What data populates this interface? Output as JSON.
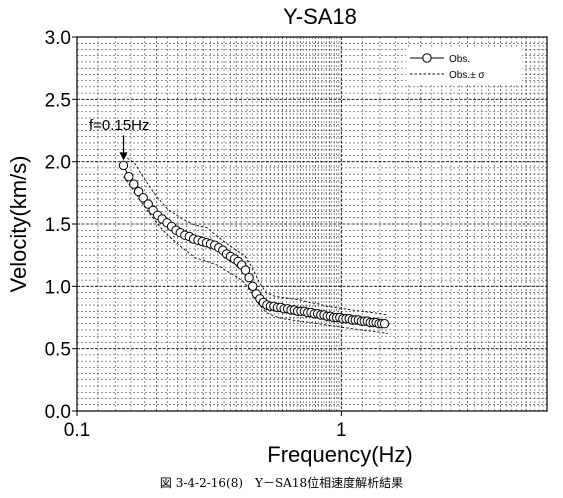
{
  "chart_data": {
    "type": "scatter",
    "title": "Y-SA18",
    "xlabel": "Frequency(Hz)",
    "ylabel": "Velocity(km/s)",
    "xscale": "log",
    "xlim": [
      0.1,
      6.0
    ],
    "ylim": [
      0.0,
      3.0
    ],
    "grid": true,
    "legend_position": "top-right",
    "x_ticks": [
      {
        "value": 0.1,
        "label": "0.1"
      },
      {
        "value": 1,
        "label": "1"
      }
    ],
    "y_ticks": [
      {
        "value": 0.0,
        "label": "0.0"
      },
      {
        "value": 0.5,
        "label": "0.5"
      },
      {
        "value": 1.0,
        "label": "1.0"
      },
      {
        "value": 1.5,
        "label": "1.5"
      },
      {
        "value": 2.0,
        "label": "2.0"
      },
      {
        "value": 2.5,
        "label": "2.5"
      },
      {
        "value": 3.0,
        "label": "3.0"
      }
    ],
    "annotation": {
      "text": "f=0.15Hz",
      "x": 0.15,
      "y": 1.97
    },
    "series": [
      {
        "name": "Obs.",
        "marker": "circle",
        "line": "solid",
        "x": [
          0.15,
          0.157,
          0.164,
          0.171,
          0.178,
          0.186,
          0.194,
          0.202,
          0.21,
          0.219,
          0.228,
          0.237,
          0.246,
          0.256,
          0.266,
          0.276,
          0.287,
          0.298,
          0.309,
          0.32,
          0.332,
          0.344,
          0.356,
          0.368,
          0.381,
          0.394,
          0.407,
          0.42,
          0.434,
          0.448,
          0.462,
          0.477,
          0.492,
          0.507,
          0.523,
          0.539,
          0.556,
          0.573,
          0.59,
          0.608,
          0.626,
          0.645,
          0.664,
          0.684,
          0.704,
          0.725,
          0.746,
          0.768,
          0.79,
          0.813,
          0.836,
          0.86,
          0.884,
          0.909,
          0.934,
          0.96,
          0.987,
          1.014,
          1.042,
          1.071,
          1.1,
          1.13,
          1.16,
          1.191,
          1.222,
          1.254,
          1.287,
          1.32,
          1.354,
          1.388,
          1.423,
          1.458
        ],
        "y": [
          1.97,
          1.88,
          1.82,
          1.76,
          1.71,
          1.66,
          1.61,
          1.57,
          1.54,
          1.51,
          1.48,
          1.45,
          1.43,
          1.41,
          1.4,
          1.38,
          1.37,
          1.36,
          1.35,
          1.34,
          1.33,
          1.31,
          1.29,
          1.26,
          1.24,
          1.22,
          1.2,
          1.17,
          1.13,
          1.07,
          1.0,
          0.94,
          0.9,
          0.87,
          0.85,
          0.84,
          0.84,
          0.83,
          0.83,
          0.82,
          0.82,
          0.81,
          0.81,
          0.8,
          0.8,
          0.8,
          0.79,
          0.79,
          0.78,
          0.78,
          0.77,
          0.77,
          0.76,
          0.76,
          0.75,
          0.75,
          0.75,
          0.74,
          0.74,
          0.74,
          0.73,
          0.73,
          0.73,
          0.72,
          0.72,
          0.72,
          0.71,
          0.71,
          0.71,
          0.7,
          0.7,
          0.7
        ]
      },
      {
        "name": "Obs.± σ",
        "line": "dashed",
        "bands": [
          {
            "x": [
              0.15,
              0.165,
              0.18,
              0.2,
              0.22,
              0.25,
              0.28,
              0.31,
              0.34,
              0.37,
              0.4,
              0.43,
              0.46,
              0.49,
              0.52,
              0.56,
              0.6,
              0.65,
              0.7,
              0.76,
              0.82,
              0.88,
              0.95,
              1.02,
              1.1,
              1.2,
              1.3,
              1.42,
              1.5
            ],
            "y": [
              2.05,
              1.99,
              1.86,
              1.72,
              1.62,
              1.54,
              1.49,
              1.47,
              1.4,
              1.34,
              1.29,
              1.25,
              1.15,
              1.03,
              0.95,
              0.92,
              0.91,
              0.9,
              0.89,
              0.87,
              0.86,
              0.84,
              0.83,
              0.82,
              0.81,
              0.8,
              0.79,
              0.78,
              0.77
            ]
          },
          {
            "x": [
              0.15,
              0.165,
              0.18,
              0.2,
              0.22,
              0.25,
              0.28,
              0.31,
              0.34,
              0.37,
              0.4,
              0.43,
              0.46,
              0.49,
              0.52,
              0.56,
              0.6,
              0.65,
              0.7,
              0.76,
              0.82,
              0.88,
              0.95,
              1.02,
              1.1,
              1.2,
              1.3,
              1.42,
              1.5
            ],
            "y": [
              1.88,
              1.76,
              1.64,
              1.51,
              1.41,
              1.31,
              1.23,
              1.2,
              1.17,
              1.12,
              1.08,
              1.03,
              0.94,
              0.85,
              0.79,
              0.76,
              0.74,
              0.73,
              0.72,
              0.71,
              0.7,
              0.69,
              0.68,
              0.67,
              0.66,
              0.65,
              0.64,
              0.63,
              0.62
            ]
          }
        ]
      }
    ]
  },
  "caption": "図 3-4-2-16(8)　Y－SA18位相速度解析結果",
  "colors": {
    "ink": "#000000",
    "grid": "#000000",
    "background": "#ffffff"
  }
}
